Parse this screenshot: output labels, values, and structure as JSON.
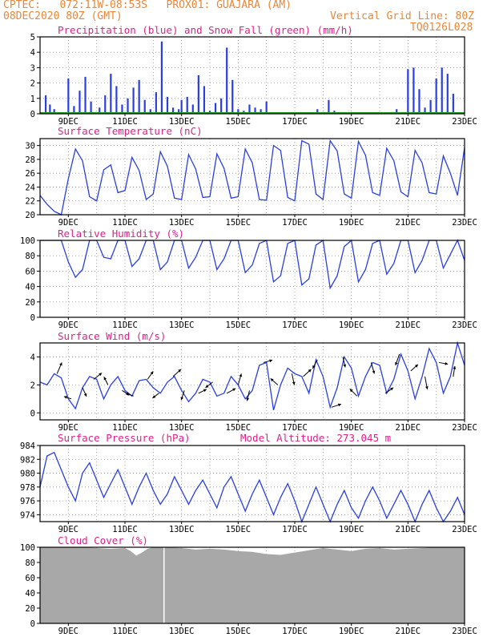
{
  "header": {
    "line1_left": "CPTEC:   072:11W-08:53S   PROX01: GUAJARA (AM)",
    "line2_left": "08DEC2020 80Z (GMT)",
    "line2_right": "Vertical Grid Line: 80Z",
    "line3_right": "TQ0126L028"
  },
  "x_tick_labels": [
    "9DEC",
    "11DEC",
    "13DEC",
    "15DEC",
    "17DEC",
    "19DEC",
    "21DEC",
    "23DEC"
  ],
  "colors": {
    "header": "#e8873a",
    "title": "#e0208a",
    "line": "#2a3fe0",
    "snow": "#1f9a1f",
    "wind_vector": "#000000",
    "cloud_fill": "#a8a8a8",
    "grid": "#9a9a9a"
  },
  "chart_data": [
    {
      "id": "precip",
      "type": "bar",
      "title": "Precipitation (blue) and Snow Fall (green) (mm/h)",
      "ylim": [
        0,
        5
      ],
      "yticks": [
        0,
        1,
        2,
        3,
        4,
        5
      ],
      "x_unit": "days since 08DEC2020 00Z",
      "x": [
        0.2,
        0.35,
        0.5,
        0.7,
        1.0,
        1.2,
        1.4,
        1.6,
        1.8,
        2.1,
        2.3,
        2.5,
        2.7,
        2.9,
        3.1,
        3.3,
        3.5,
        3.7,
        3.9,
        4.1,
        4.3,
        4.5,
        4.7,
        4.9,
        5.0,
        5.2,
        5.4,
        5.6,
        5.8,
        6.0,
        6.2,
        6.4,
        6.6,
        6.8,
        7.0,
        7.2,
        7.4,
        7.6,
        7.8,
        8.0,
        8.2,
        8.4,
        8.6,
        8.8,
        9.0,
        9.2,
        9.4,
        9.6,
        9.8,
        10.0,
        10.2,
        10.4,
        10.6,
        10.8,
        11.0,
        11.2,
        11.4,
        11.6,
        11.8,
        12.0,
        12.2,
        12.4,
        12.6,
        12.8,
        13.0,
        13.2,
        13.4,
        13.6,
        13.8,
        14.0,
        14.2,
        14.4,
        14.6
      ],
      "values": [
        1.2,
        0.6,
        0.3,
        0.1,
        2.3,
        0.5,
        1.5,
        2.4,
        0.8,
        0.4,
        1.2,
        2.6,
        1.8,
        0.6,
        1.0,
        1.7,
        2.2,
        0.9,
        0.3,
        1.4,
        4.7,
        1.1,
        0.4,
        0.3,
        0.9,
        1.1,
        0.6,
        2.5,
        1.8,
        0.2,
        0.7,
        1.0,
        4.3,
        2.2,
        0.3,
        0.2,
        0.6,
        0.4,
        0.3,
        0.8,
        0.1,
        0.1,
        0.0,
        0.0,
        0.0,
        0.0,
        0.0,
        0.1,
        0.3,
        0.0,
        0.9,
        0.2,
        0.0,
        0.0,
        0.0,
        0.0,
        0.0,
        0.0,
        0.0,
        0.0,
        0.0,
        0.0,
        0.3,
        0.1,
        2.9,
        3.0,
        1.6,
        0.4,
        0.9,
        2.3,
        3.0,
        2.6,
        1.3
      ],
      "snow": 0
    },
    {
      "id": "temp",
      "type": "line",
      "title": "Surface Temperature (nC)",
      "ylim": [
        20,
        31
      ],
      "yticks": [
        20,
        22,
        24,
        26,
        28,
        30
      ],
      "series": [
        {
          "x": [
            0,
            0.25,
            0.5,
            0.75,
            1.0,
            1.25,
            1.5,
            1.75,
            2.0,
            2.25,
            2.5,
            2.75,
            3.0,
            3.25,
            3.5,
            3.75,
            4.0,
            4.25,
            4.5,
            4.75,
            5.0,
            5.25,
            5.5,
            5.75,
            6.0,
            6.25,
            6.5,
            6.75,
            7.0,
            7.25,
            7.5,
            7.75,
            8.0,
            8.25,
            8.5,
            8.75,
            9.0,
            9.25,
            9.5,
            9.75,
            10.0,
            10.25,
            10.5,
            10.75,
            11.0,
            11.25,
            11.5,
            11.75,
            12.0,
            12.25,
            12.5,
            12.75,
            13.0,
            13.25,
            13.5,
            13.75,
            14.0,
            14.25,
            14.5,
            14.75,
            15.0
          ],
          "values": [
            22.8,
            21.5,
            20.5,
            20.0,
            25.2,
            29.5,
            27.8,
            22.6,
            22.0,
            26.5,
            27.2,
            23.2,
            23.5,
            28.3,
            26.4,
            22.2,
            23.0,
            29.1,
            27.0,
            22.4,
            22.2,
            28.7,
            26.6,
            22.5,
            22.6,
            28.8,
            26.7,
            22.4,
            22.6,
            29.5,
            27.5,
            22.2,
            22.1,
            30.0,
            29.3,
            22.5,
            22.0,
            30.7,
            30.2,
            23.0,
            22.2,
            30.7,
            29.2,
            23.0,
            22.4,
            30.6,
            28.6,
            23.2,
            22.8,
            29.6,
            27.8,
            23.3,
            22.6,
            29.3,
            27.5,
            23.2,
            23.0,
            28.5,
            26.0,
            22.8,
            29.7
          ]
        }
      ]
    },
    {
      "id": "rh",
      "type": "line",
      "title": "Relative Humidity (%)",
      "ylim": [
        0,
        100
      ],
      "yticks": [
        0,
        20,
        40,
        60,
        80,
        100
      ],
      "series": [
        {
          "x": [
            0,
            0.25,
            0.5,
            0.75,
            1.0,
            1.25,
            1.5,
            1.75,
            2.0,
            2.25,
            2.5,
            2.75,
            3.0,
            3.25,
            3.5,
            3.75,
            4.0,
            4.25,
            4.5,
            4.75,
            5.0,
            5.25,
            5.5,
            5.75,
            6.0,
            6.25,
            6.5,
            6.75,
            7.0,
            7.25,
            7.5,
            7.75,
            8.0,
            8.25,
            8.5,
            8.75,
            9.0,
            9.25,
            9.5,
            9.75,
            10.0,
            10.25,
            10.5,
            10.75,
            11.0,
            11.25,
            11.5,
            11.75,
            12.0,
            12.25,
            12.5,
            12.75,
            13.0,
            13.25,
            13.5,
            13.75,
            14.0,
            14.25,
            14.5,
            14.75,
            15.0
          ],
          "values": [
            100,
            100,
            100,
            100,
            72,
            52,
            62,
            100,
            100,
            78,
            76,
            100,
            100,
            66,
            76,
            100,
            100,
            62,
            72,
            100,
            100,
            64,
            78,
            100,
            100,
            62,
            76,
            100,
            100,
            58,
            68,
            96,
            100,
            46,
            54,
            96,
            100,
            42,
            50,
            94,
            100,
            38,
            54,
            92,
            100,
            46,
            62,
            96,
            100,
            56,
            70,
            100,
            100,
            58,
            74,
            100,
            100,
            64,
            82,
            100,
            74
          ]
        }
      ]
    },
    {
      "id": "wind",
      "type": "line",
      "title": "Surface Wind (m/s)",
      "ylim": [
        -0.5,
        5.0
      ],
      "yticks": [
        0,
        2,
        4
      ],
      "series": [
        {
          "x": [
            0,
            0.25,
            0.5,
            0.75,
            1.0,
            1.25,
            1.5,
            1.75,
            2.0,
            2.25,
            2.5,
            2.75,
            3.0,
            3.25,
            3.5,
            3.75,
            4.0,
            4.25,
            4.5,
            4.75,
            5.0,
            5.25,
            5.5,
            5.75,
            6.0,
            6.25,
            6.5,
            6.75,
            7.0,
            7.25,
            7.5,
            7.75,
            8.0,
            8.25,
            8.5,
            8.75,
            9.0,
            9.25,
            9.5,
            9.75,
            10.0,
            10.25,
            10.5,
            10.75,
            11.0,
            11.25,
            11.5,
            11.75,
            12.0,
            12.25,
            12.5,
            12.75,
            13.0,
            13.25,
            13.5,
            13.75,
            14.0,
            14.25,
            14.5,
            14.75,
            15.0
          ],
          "values": [
            2.2,
            2.0,
            2.8,
            2.5,
            1.0,
            0.3,
            1.8,
            2.6,
            2.4,
            1.0,
            2.0,
            2.6,
            1.6,
            1.2,
            2.3,
            2.4,
            1.8,
            1.4,
            2.2,
            2.6,
            1.6,
            0.8,
            1.4,
            2.4,
            2.2,
            1.2,
            1.4,
            2.6,
            2.0,
            1.0,
            1.6,
            3.4,
            3.6,
            0.2,
            2.0,
            3.2,
            2.8,
            2.6,
            1.4,
            3.8,
            2.6,
            0.4,
            1.8,
            4.0,
            3.2,
            1.2,
            2.6,
            3.6,
            3.4,
            1.4,
            2.4,
            4.2,
            3.0,
            1.0,
            2.6,
            4.6,
            3.6,
            1.4,
            2.6,
            5.0,
            3.4
          ]
        }
      ],
      "vectors": [
        {
          "x": 0.6,
          "u": 0.6,
          "v": 1.4
        },
        {
          "x": 1.1,
          "u": -0.9,
          "v": 0.3
        },
        {
          "x": 1.5,
          "u": 0.5,
          "v": -1.1
        },
        {
          "x": 1.9,
          "u": 1.0,
          "v": 0.8
        },
        {
          "x": 2.4,
          "u": -0.5,
          "v": 1.0
        },
        {
          "x": 2.9,
          "u": 0.9,
          "v": -0.6
        },
        {
          "x": 3.3,
          "u": -1.0,
          "v": 0.4
        },
        {
          "x": 3.8,
          "u": 0.7,
          "v": 1.0
        },
        {
          "x": 4.2,
          "u": -0.8,
          "v": -0.6
        },
        {
          "x": 4.7,
          "u": 1.0,
          "v": 0.9
        },
        {
          "x": 5.1,
          "u": -0.4,
          "v": -1.2
        },
        {
          "x": 5.6,
          "u": 1.0,
          "v": 0.5
        },
        {
          "x": 6.1,
          "u": -0.9,
          "v": -0.7
        },
        {
          "x": 6.6,
          "u": 1.1,
          "v": 0.6
        },
        {
          "x": 7.0,
          "u": 0.4,
          "v": 1.4
        },
        {
          "x": 7.4,
          "u": -0.3,
          "v": -1.3
        },
        {
          "x": 7.9,
          "u": 1.1,
          "v": 0.3
        },
        {
          "x": 8.4,
          "u": -0.9,
          "v": 0.8
        },
        {
          "x": 8.9,
          "u": 0.3,
          "v": -1.4
        },
        {
          "x": 9.3,
          "u": 1.0,
          "v": 0.9
        },
        {
          "x": 9.8,
          "u": -0.6,
          "v": -1.1
        },
        {
          "x": 10.3,
          "u": 1.2,
          "v": 0.4
        },
        {
          "x": 10.7,
          "u": 0.3,
          "v": -1.3
        },
        {
          "x": 11.2,
          "u": -0.9,
          "v": 0.9
        },
        {
          "x": 11.7,
          "u": 0.4,
          "v": -1.4
        },
        {
          "x": 12.2,
          "u": 1.0,
          "v": 0.7
        },
        {
          "x": 12.7,
          "u": -0.5,
          "v": -1.4
        },
        {
          "x": 13.1,
          "u": 0.9,
          "v": 0.8
        },
        {
          "x": 13.6,
          "u": 0.3,
          "v": -1.6
        },
        {
          "x": 14.1,
          "u": 1.1,
          "v": -0.2
        },
        {
          "x": 14.6,
          "u": 0.2,
          "v": 1.3
        }
      ]
    },
    {
      "id": "pressure",
      "type": "line",
      "title": "Surface Pressure (hPa)",
      "annotation": "Model Altitude: 273.045 m",
      "ylim": [
        973,
        984
      ],
      "yticks": [
        974,
        976,
        978,
        980,
        982,
        984
      ],
      "series": [
        {
          "x": [
            0,
            0.25,
            0.5,
            0.75,
            1.0,
            1.25,
            1.5,
            1.75,
            2.0,
            2.25,
            2.5,
            2.75,
            3.0,
            3.25,
            3.5,
            3.75,
            4.0,
            4.25,
            4.5,
            4.75,
            5.0,
            5.25,
            5.5,
            5.75,
            6.0,
            6.25,
            6.5,
            6.75,
            7.0,
            7.25,
            7.5,
            7.75,
            8.0,
            8.25,
            8.5,
            8.75,
            9.0,
            9.25,
            9.5,
            9.75,
            10.0,
            10.25,
            10.5,
            10.75,
            11.0,
            11.25,
            11.5,
            11.75,
            12.0,
            12.25,
            12.5,
            12.75,
            13.0,
            13.25,
            13.5,
            13.75,
            14.0,
            14.25,
            14.5,
            14.75,
            15.0
          ],
          "values": [
            978.0,
            982.5,
            983.0,
            980.5,
            978.0,
            976.0,
            980.0,
            981.5,
            979.0,
            976.5,
            978.5,
            980.5,
            978.0,
            975.5,
            978.0,
            980.0,
            977.5,
            975.5,
            977.0,
            979.5,
            977.5,
            975.5,
            977.5,
            979.0,
            977.0,
            975.0,
            978.0,
            979.5,
            977.0,
            974.5,
            977.0,
            979.0,
            976.5,
            974.0,
            976.5,
            978.5,
            976.0,
            973.0,
            975.5,
            978.0,
            975.5,
            973.0,
            975.5,
            977.5,
            975.0,
            973.5,
            976.0,
            978.0,
            976.0,
            973.5,
            975.5,
            977.5,
            975.5,
            973.0,
            975.5,
            977.5,
            975.0,
            973.0,
            974.5,
            976.5,
            974.0
          ]
        }
      ]
    },
    {
      "id": "cloud",
      "type": "area",
      "title": "Cloud Cover (%)",
      "ylim": [
        0,
        100
      ],
      "yticks": [
        0,
        20,
        40,
        60,
        80,
        100
      ],
      "series": [
        {
          "x": [
            0,
            0.5,
            1.0,
            1.5,
            2.0,
            2.5,
            3.0,
            3.2,
            3.4,
            3.6,
            3.8,
            4.0,
            4.5,
            5.0,
            5.5,
            6.0,
            6.5,
            7.0,
            7.5,
            8.0,
            8.5,
            9.0,
            9.5,
            10.0,
            10.5,
            11.0,
            11.5,
            12.0,
            12.5,
            13.0,
            13.5,
            14.0,
            14.5,
            15.0
          ],
          "values": [
            100,
            100,
            100,
            100,
            99,
            98,
            99,
            95,
            89,
            93,
            98,
            100,
            100,
            99,
            97,
            98,
            97,
            95,
            94,
            91,
            90,
            93,
            96,
            99,
            97,
            95,
            98,
            99,
            97,
            98,
            99,
            100,
            100,
            100
          ]
        }
      ],
      "gap_x": 4.38
    }
  ]
}
